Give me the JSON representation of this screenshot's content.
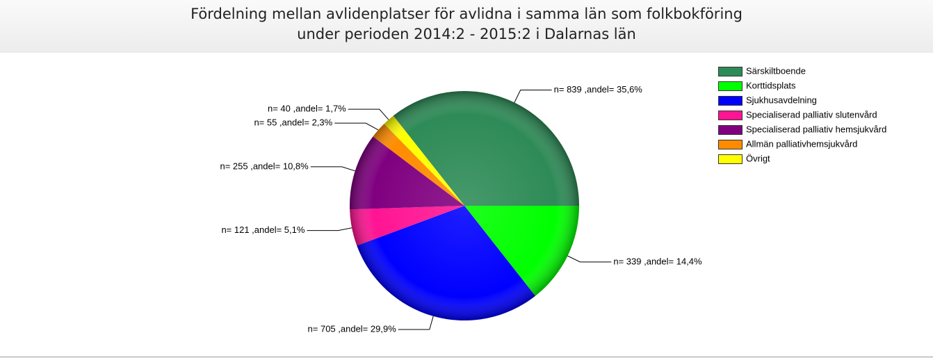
{
  "chart_data": {
    "type": "pie",
    "title": "Fördelning mellan avlidenplatser för avlidna i samma län som folkbokföring\nunder perioden 2014:2 - 2015:2 i Dalarnas län",
    "categories": [
      "Särskiltboende",
      "Korttidsplats",
      "Sjukhusavdelning",
      "Specialiserad palliativ slutenvård",
      "Specialiserad palliativ hemsjukvård",
      "Allmän palliativhemsjukvård",
      "Övrigt"
    ],
    "values": [
      839,
      339,
      705,
      121,
      255,
      55,
      40
    ],
    "value_labels": [
      "n= 839 ,andel= 35,6%",
      "n= 339 ,andel= 14,4%",
      "n= 705 ,andel= 29,9%",
      "n= 121 ,andel= 5,1%",
      "n= 255 ,andel= 10,8%",
      "n= 55 ,andel= 2,3%",
      "n= 40 ,andel= 1,7%"
    ],
    "colors": [
      "#2e8b57",
      "#00ff00",
      "#0000ff",
      "#ff1493",
      "#800080",
      "#ff8c00",
      "#ffff00"
    ],
    "legend": "top-right"
  }
}
